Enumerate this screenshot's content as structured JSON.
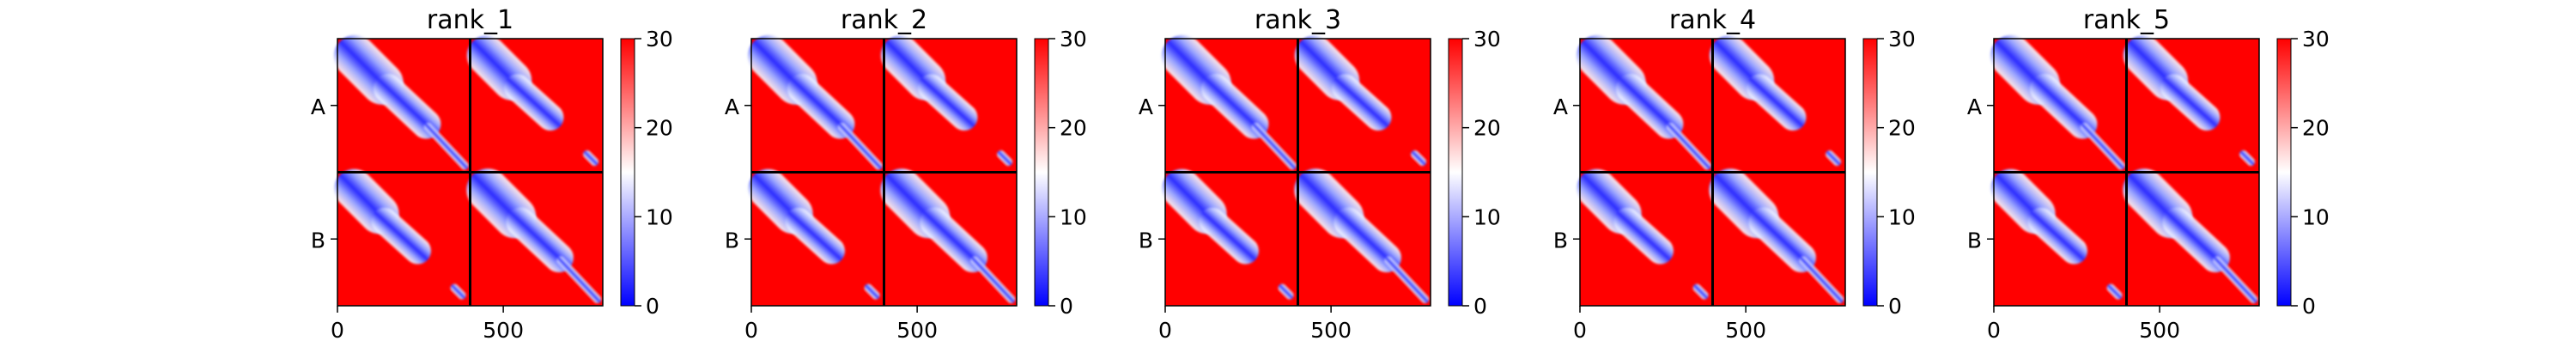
{
  "chart_data": {
    "type": "heatmap",
    "chain_labels": [
      "A",
      "B"
    ],
    "x_ticks": [
      0,
      500
    ],
    "xlim": [
      0,
      800
    ],
    "colorbar": {
      "ticks": [
        0,
        10,
        20,
        30
      ],
      "range": [
        0,
        30
      ],
      "colormap": "bwr"
    },
    "panels": [
      {
        "title": "rank_1"
      },
      {
        "title": "rank_2"
      },
      {
        "title": "rank_3"
      },
      {
        "title": "rank_4"
      },
      {
        "title": "rank_5"
      }
    ]
  },
  "colors": {
    "low": "#0000ff",
    "mid": "#ffffff",
    "high": "#ff0000",
    "divider": "#000000"
  }
}
